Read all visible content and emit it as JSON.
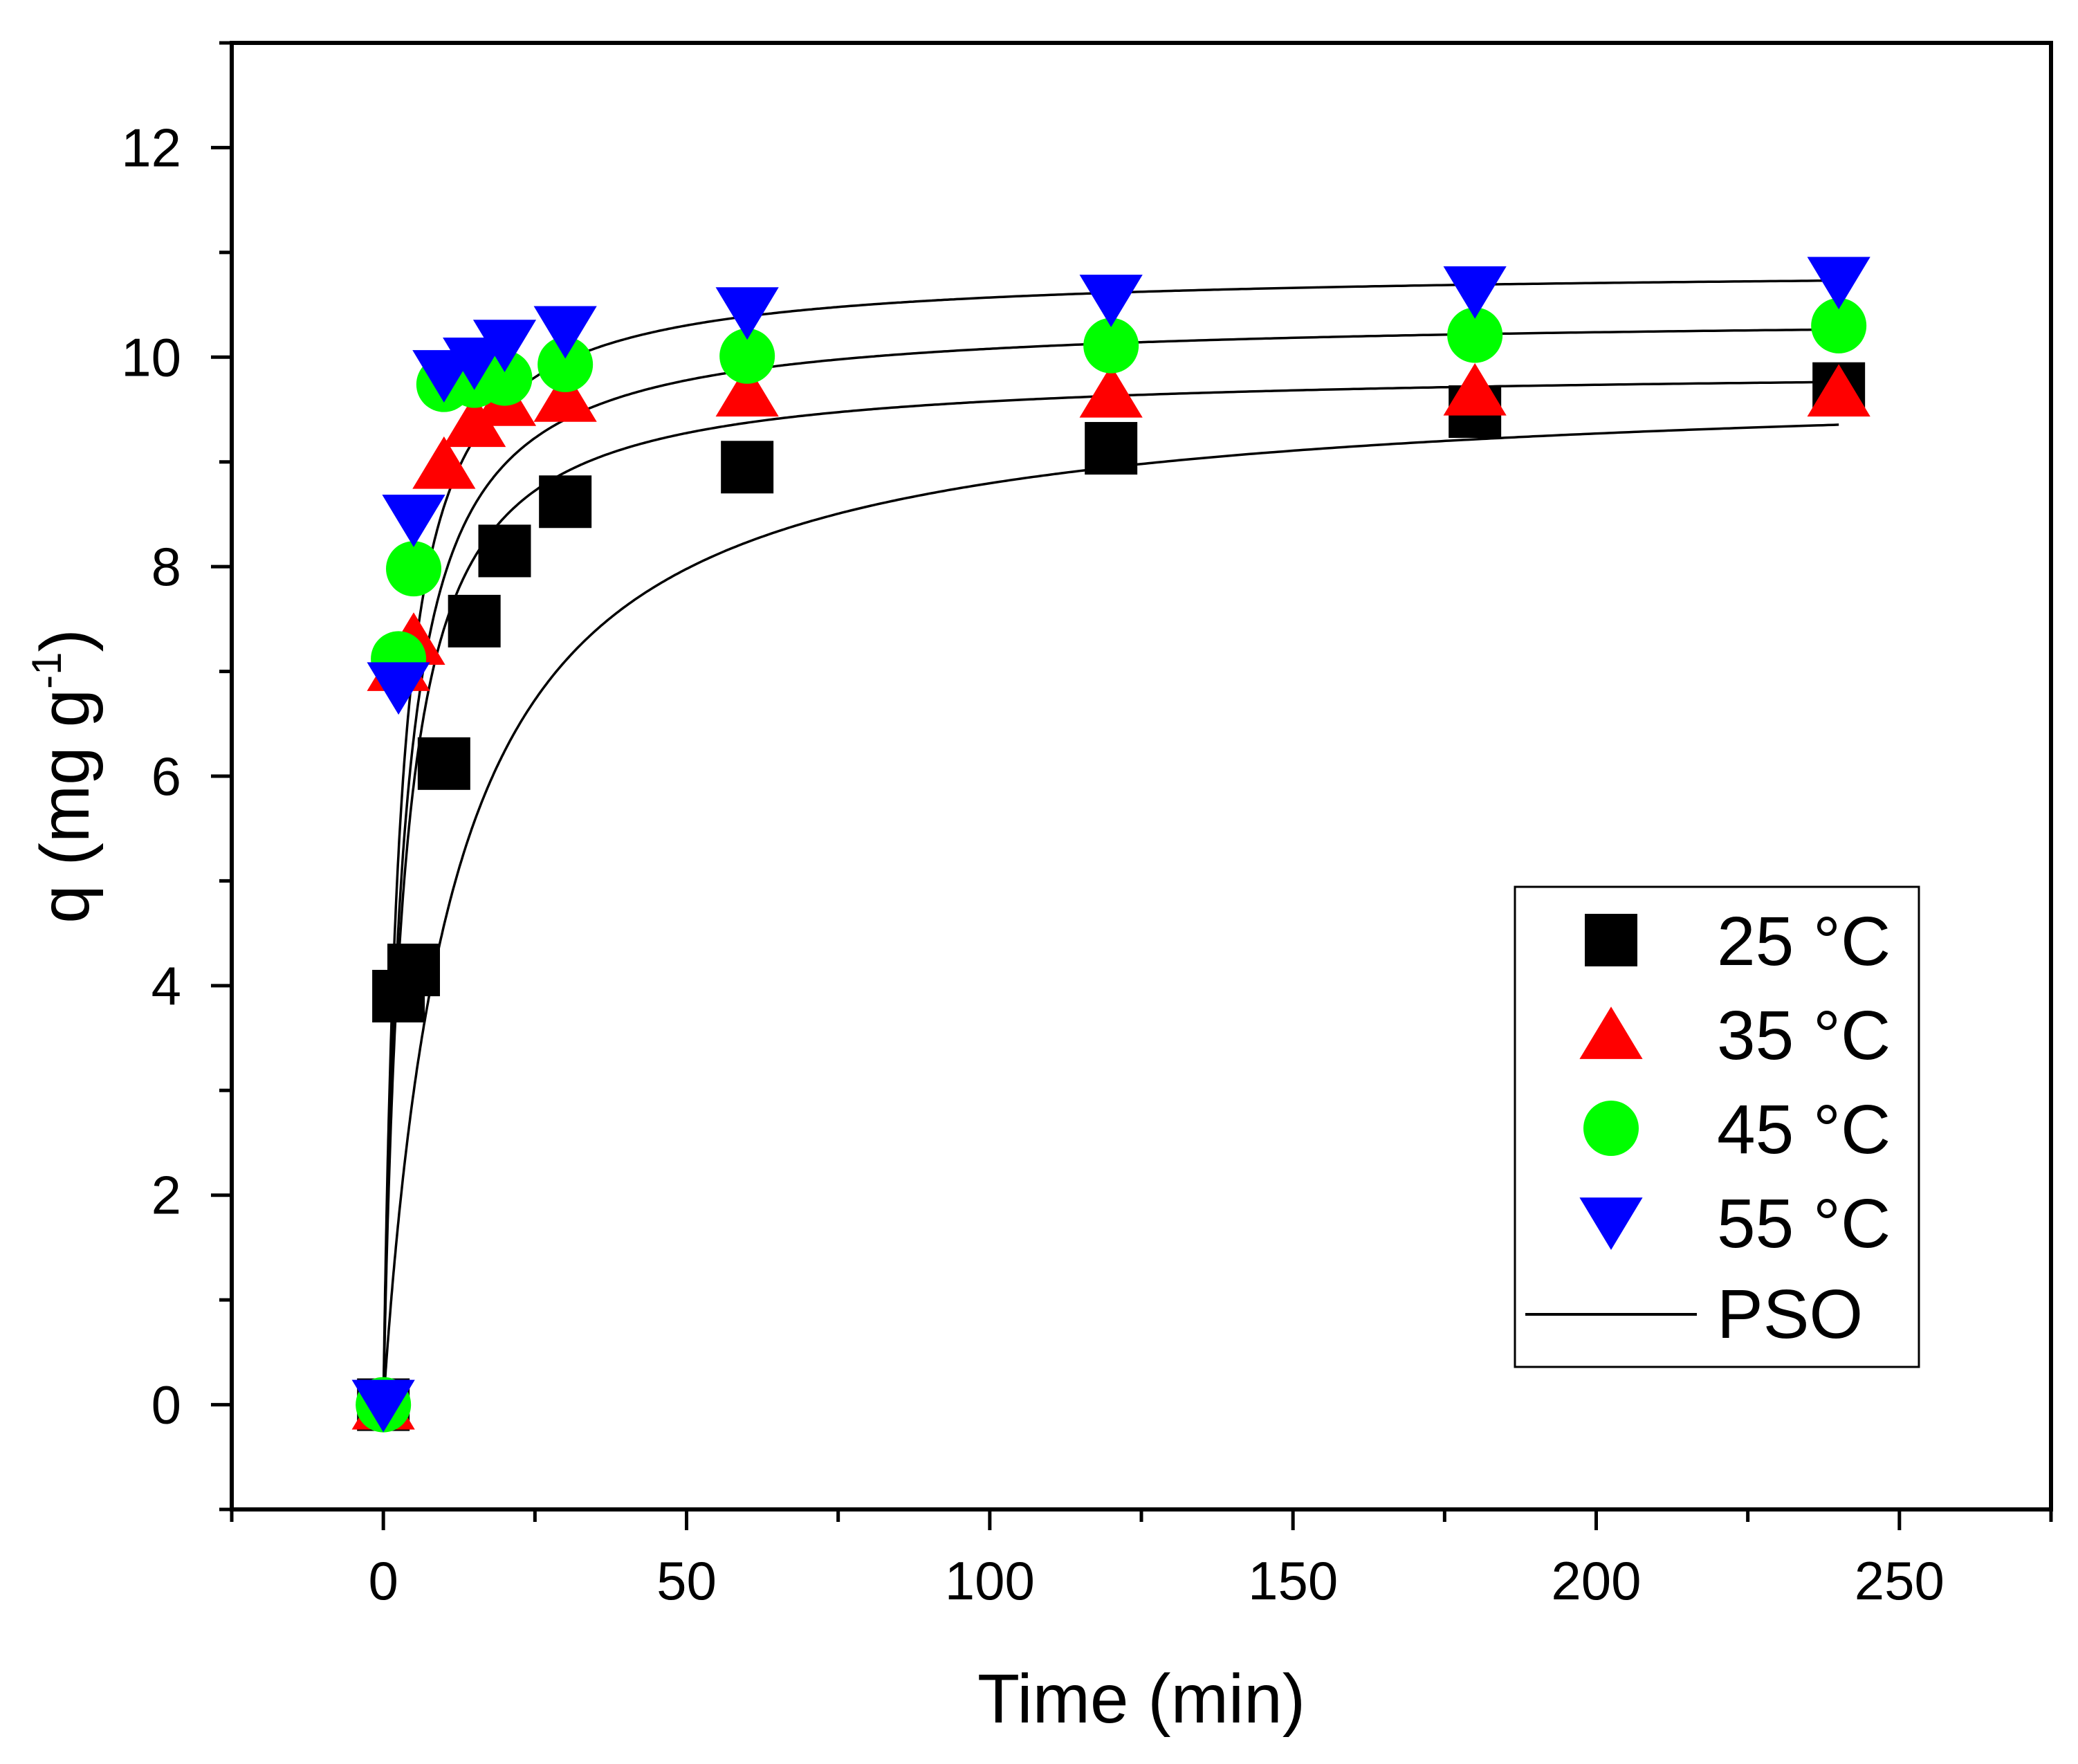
{
  "chart_data": {
    "type": "scatter",
    "title": "",
    "xlabel": "Time (min)",
    "ylabel": "q (mg g",
    "ylabel_sup": "-1",
    "ylabel_close": ")",
    "xlim": [
      -25,
      275
    ],
    "ylim": [
      -1,
      13
    ],
    "xticks": [
      0,
      50,
      100,
      150,
      200,
      250
    ],
    "yticks": [
      0,
      2,
      4,
      6,
      8,
      10,
      12
    ],
    "xtick_labels": [
      "0",
      "50",
      "100",
      "150",
      "200",
      "250"
    ],
    "ytick_labels": [
      "0",
      "2",
      "4",
      "6",
      "8",
      "10",
      "12"
    ],
    "grid": false,
    "legend_position": "bottom-right",
    "series": [
      {
        "name": "25 °C",
        "marker": "square",
        "color": "#000000",
        "x": [
          0,
          2.5,
          5,
          10,
          15,
          20,
          30,
          60,
          120,
          180,
          240
        ],
        "y": [
          0,
          3.9,
          4.15,
          6.12,
          7.48,
          8.15,
          8.62,
          8.95,
          9.13,
          9.48,
          9.7
        ],
        "fit": {
          "qe": 9.8,
          "k": 0.00894
        }
      },
      {
        "name": "35 °C",
        "marker": "triangle-up",
        "color": "#ff0000",
        "x": [
          0,
          2.5,
          5,
          10,
          15,
          20,
          30,
          60,
          120,
          180,
          240
        ],
        "y": [
          0,
          7.05,
          7.3,
          8.98,
          9.38,
          9.58,
          9.62,
          9.67,
          9.66,
          9.68,
          9.67
        ],
        "fit": {
          "qe": 9.9,
          "k": 0.03
        }
      },
      {
        "name": "45 °C",
        "marker": "circle",
        "color": "#00ff00",
        "x": [
          0,
          2.5,
          5,
          10,
          15,
          20,
          30,
          60,
          120,
          180,
          240
        ],
        "y": [
          0,
          7.12,
          7.98,
          9.74,
          9.78,
          9.8,
          9.93,
          10.01,
          10.11,
          10.21,
          10.3
        ],
        "fit": {
          "qe": 10.4,
          "k": 0.0303
        }
      },
      {
        "name": "55 °C",
        "marker": "triangle-down",
        "color": "#0000ff",
        "x": [
          0,
          2.5,
          5,
          10,
          15,
          20,
          30,
          60,
          120,
          180,
          240
        ],
        "y": [
          0,
          6.85,
          8.45,
          9.83,
          9.95,
          10.12,
          10.25,
          10.43,
          10.55,
          10.63,
          10.72
        ],
        "fit": {
          "qe": 10.85,
          "k": 0.0347
        }
      }
    ],
    "fit_legend": "PSO",
    "fit_color": "#000000"
  }
}
